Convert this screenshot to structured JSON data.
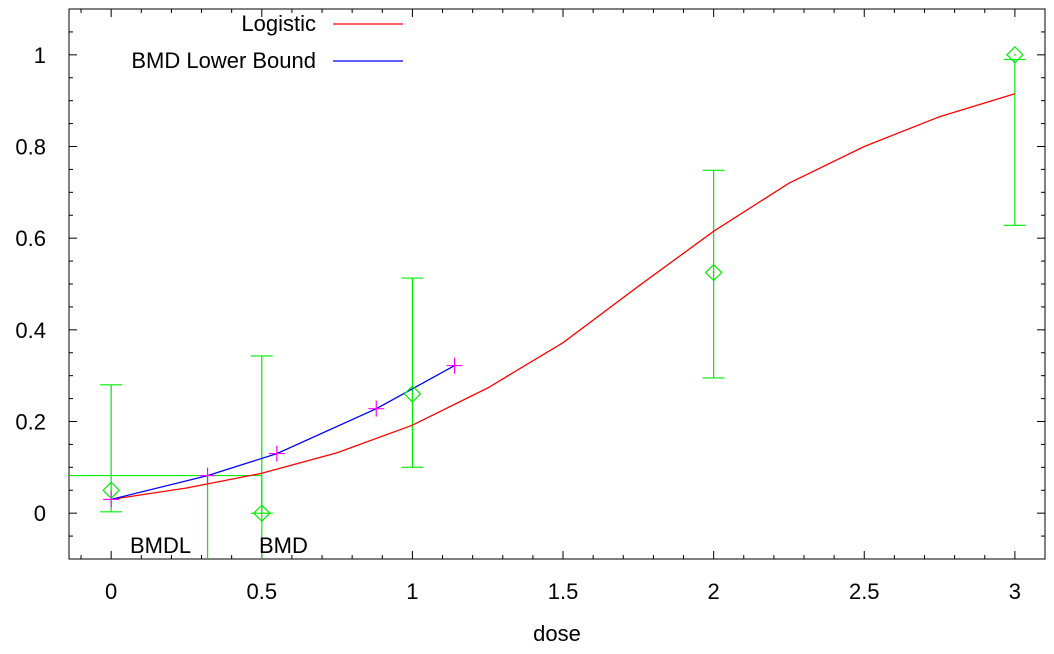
{
  "chart_data": {
    "type": "line",
    "xlabel": "dose",
    "ylabel": "",
    "xlim": [
      -0.14,
      3.1
    ],
    "ylim": [
      -0.1,
      1.1
    ],
    "xticks": [
      0,
      0.5,
      1,
      1.5,
      2,
      2.5,
      3
    ],
    "xtick_labels": [
      "0",
      "0.5",
      "1",
      "1.5",
      "2",
      "2.5",
      "3"
    ],
    "yticks": [
      0,
      0.2,
      0.4,
      0.6,
      0.8,
      1
    ],
    "ytick_labels": [
      "0",
      "0.2",
      "0.4",
      "0.6",
      "0.8",
      "1"
    ],
    "grid": false,
    "legend_position": "top-left",
    "legend": [
      {
        "label": "Logistic",
        "color": "#ff0000"
      },
      {
        "label": "BMD Lower Bound",
        "color": "#0000ff"
      }
    ],
    "series": [
      {
        "name": "Logistic",
        "color": "#ff0000",
        "x": [
          0,
          0.25,
          0.5,
          0.75,
          1,
          1.25,
          1.5,
          1.75,
          2,
          2.25,
          2.5,
          2.75,
          3
        ],
        "y": [
          0.03,
          0.055,
          0.087,
          0.132,
          0.192,
          0.273,
          0.372,
          0.495,
          0.615,
          0.72,
          0.8,
          0.865,
          0.915
        ]
      },
      {
        "name": "BMD Lower Bound",
        "color": "#0000ff",
        "x": [
          0,
          0.32,
          0.55,
          0.88,
          1.14
        ],
        "y": [
          0.03,
          0.082,
          0.13,
          0.228,
          0.322
        ]
      }
    ],
    "observed_points": {
      "color": "#00ee00",
      "x": [
        0,
        0.5,
        1,
        2,
        3
      ],
      "y": [
        0.05,
        0.0,
        0.26,
        0.525,
        1.0
      ],
      "lower": [
        0.003,
        0.0,
        0.1,
        0.295,
        0.628
      ],
      "upper": [
        0.28,
        0.343,
        0.513,
        0.748,
        0.99
      ]
    },
    "bmd_markers": {
      "color": "#ff00ff",
      "x": [
        0,
        0.32,
        0.55,
        0.88,
        1.14
      ],
      "y": [
        0.03,
        0.082,
        0.13,
        0.228,
        0.322
      ]
    },
    "benchmark_response": 0.082,
    "bmdl": {
      "label": "BMDL",
      "x": 0.32
    },
    "bmd": {
      "label": "BMD",
      "x": 0.5
    }
  }
}
